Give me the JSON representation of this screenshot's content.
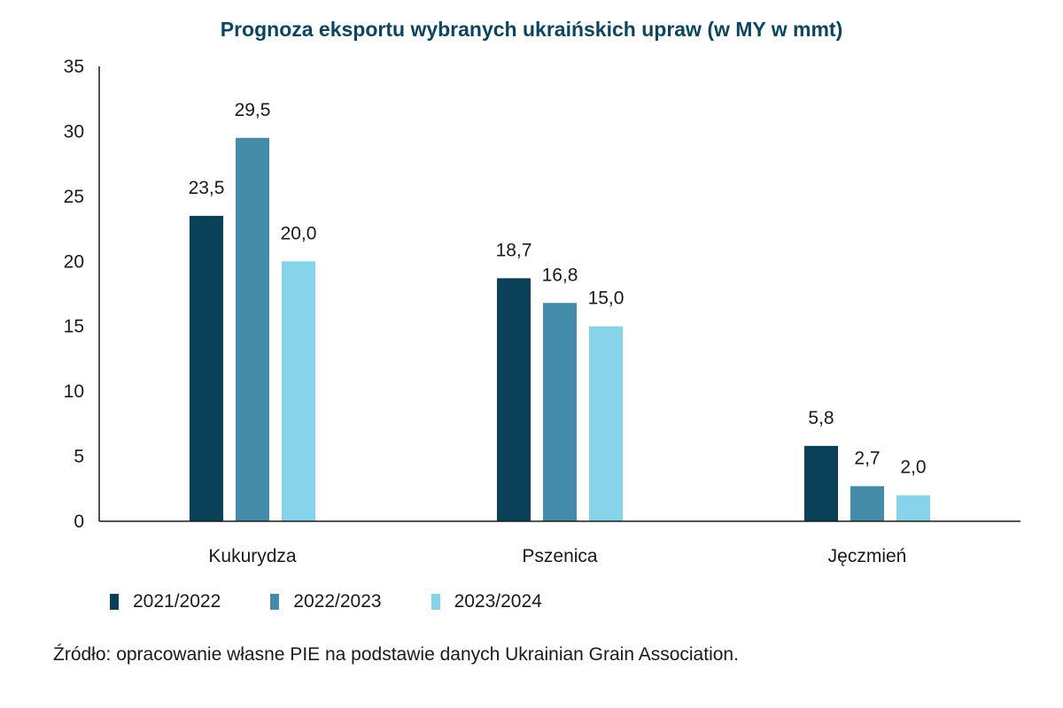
{
  "chart_data": {
    "type": "bar",
    "title": "Prognoza eksportu wybranych ukraińskich upraw (w MY w mmt)",
    "categories": [
      "Kukurydza",
      "Pszenica",
      "Jęczmień"
    ],
    "series": [
      {
        "name": "2021/2022",
        "color": "#0a4058",
        "values": [
          23.5,
          18.7,
          5.8
        ],
        "labels": [
          "23,5",
          "18,7",
          "5,8"
        ]
      },
      {
        "name": "2022/2023",
        "color": "#438ba8",
        "values": [
          29.5,
          16.8,
          2.7
        ],
        "labels": [
          "29,5",
          "16,8",
          "2,7"
        ]
      },
      {
        "name": "2023/2024",
        "color": "#86d3ea",
        "values": [
          20.0,
          15.0,
          2.0
        ],
        "labels": [
          "20,0",
          "15,0",
          "2,0"
        ]
      }
    ],
    "ylim": [
      0,
      35
    ],
    "yticks": [
      0,
      5,
      10,
      15,
      20,
      25,
      30,
      35
    ],
    "xlabel": "",
    "ylabel": "",
    "grid": false,
    "legend_position": "bottom-left"
  },
  "source_note": "Źródło: opracowanie własne PIE na podstawie danych Ukrainian Grain Association."
}
